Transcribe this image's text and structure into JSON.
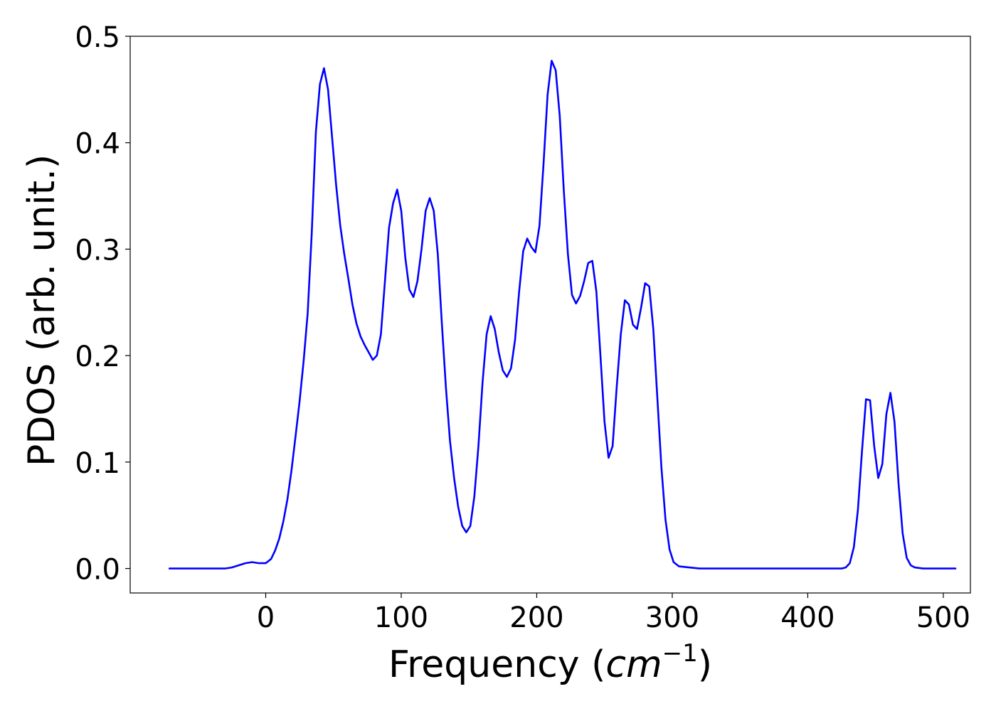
{
  "chart_data": {
    "type": "line",
    "title": "",
    "xlabel_prefix": "Frequency (",
    "xlabel_math": "cm",
    "xlabel_sup": "−1",
    "xlabel_suffix": ")",
    "ylabel": "PDOS (arb. unit.)",
    "xlim": [
      -100,
      520
    ],
    "ylim": [
      -0.023,
      0.5
    ],
    "xticks": [
      0,
      100,
      200,
      300,
      400,
      500
    ],
    "xtick_labels": [
      "0",
      "100",
      "200",
      "300",
      "400",
      "500"
    ],
    "yticks": [
      0.0,
      0.1,
      0.2,
      0.3,
      0.4,
      0.5
    ],
    "ytick_labels": [
      "0.0",
      "0.1",
      "0.2",
      "0.3",
      "0.4",
      "0.5"
    ],
    "grid": false,
    "legend": false,
    "line_color": "#0000ff",
    "series": [
      {
        "x": [
          -71,
          -40,
          -30,
          -25,
          -20,
          -15,
          -10,
          -5,
          0,
          4,
          7,
          10,
          13,
          16,
          19,
          22,
          25,
          28,
          31,
          34,
          37,
          40,
          43,
          46,
          49,
          52,
          55,
          58,
          61,
          64,
          67,
          70,
          73,
          76,
          79,
          82,
          85,
          88,
          91,
          94,
          97,
          100,
          103,
          106,
          109,
          112,
          115,
          118,
          121,
          124,
          127,
          130,
          133,
          136,
          139,
          142,
          145,
          148,
          151,
          154,
          157,
          160,
          163,
          166,
          169,
          172,
          175,
          178,
          181,
          184,
          187,
          190,
          193,
          196,
          199,
          202,
          205,
          208,
          211,
          214,
          217,
          220,
          223,
          226,
          229,
          232,
          235,
          238,
          241,
          244,
          247,
          250,
          253,
          256,
          259,
          262,
          265,
          268,
          271,
          274,
          277,
          280,
          283,
          286,
          289,
          292,
          295,
          298,
          301,
          305,
          320,
          350,
          400,
          420,
          425,
          428,
          431,
          434,
          437,
          440,
          443,
          446,
          449,
          452,
          455,
          458,
          461,
          464,
          467,
          470,
          473,
          476,
          479,
          485,
          509
        ],
        "y": [
          0.0,
          0.0,
          0.0,
          0.001,
          0.003,
          0.005,
          0.006,
          0.005,
          0.005,
          0.009,
          0.017,
          0.028,
          0.044,
          0.065,
          0.092,
          0.124,
          0.157,
          0.195,
          0.24,
          0.315,
          0.41,
          0.455,
          0.47,
          0.45,
          0.405,
          0.36,
          0.322,
          0.295,
          0.272,
          0.248,
          0.23,
          0.218,
          0.21,
          0.203,
          0.196,
          0.2,
          0.22,
          0.27,
          0.32,
          0.343,
          0.356,
          0.336,
          0.292,
          0.262,
          0.255,
          0.27,
          0.3,
          0.336,
          0.348,
          0.336,
          0.295,
          0.23,
          0.17,
          0.12,
          0.085,
          0.058,
          0.04,
          0.034,
          0.04,
          0.068,
          0.115,
          0.175,
          0.22,
          0.237,
          0.225,
          0.203,
          0.186,
          0.18,
          0.188,
          0.215,
          0.26,
          0.298,
          0.31,
          0.302,
          0.297,
          0.322,
          0.38,
          0.445,
          0.477,
          0.468,
          0.425,
          0.355,
          0.295,
          0.257,
          0.249,
          0.256,
          0.27,
          0.287,
          0.289,
          0.26,
          0.2,
          0.138,
          0.104,
          0.115,
          0.17,
          0.22,
          0.252,
          0.248,
          0.229,
          0.225,
          0.245,
          0.268,
          0.265,
          0.225,
          0.16,
          0.095,
          0.046,
          0.018,
          0.006,
          0.002,
          0.0,
          0.0,
          0.0,
          0.0,
          0.0,
          0.001,
          0.005,
          0.02,
          0.055,
          0.11,
          0.159,
          0.158,
          0.115,
          0.085,
          0.098,
          0.145,
          0.165,
          0.138,
          0.08,
          0.033,
          0.01,
          0.003,
          0.001,
          0.0,
          0.0
        ]
      }
    ]
  }
}
